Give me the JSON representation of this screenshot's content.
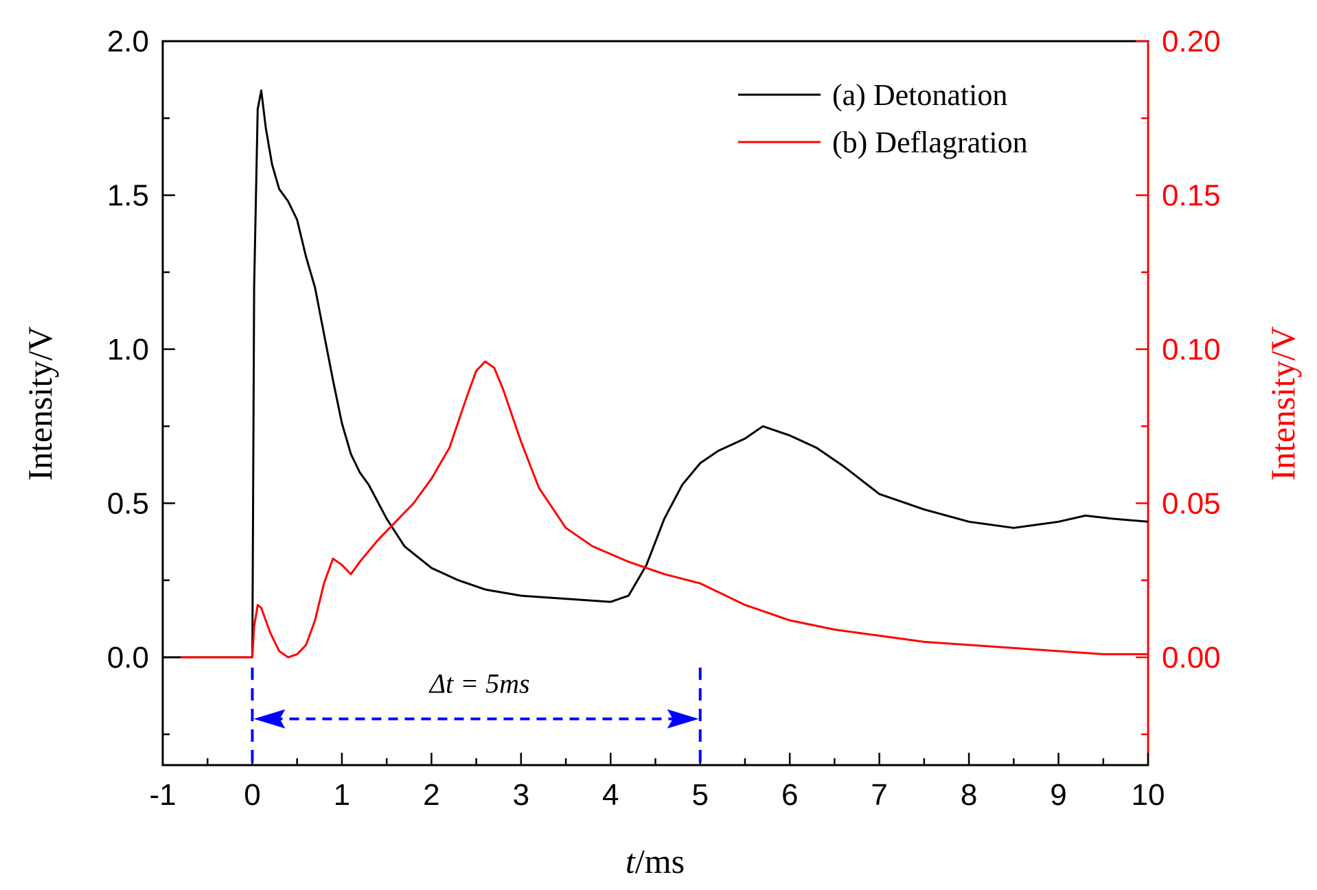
{
  "chart_data": {
    "type": "line",
    "title": "",
    "xlabel_italic": "t",
    "xlabel_rest": "/ms",
    "ylabel_left": "Intensity/V",
    "ylabel_right": "Intensity/V",
    "xlim": [
      -1,
      10
    ],
    "ylim_left": [
      -0.35,
      2.0
    ],
    "ylim_right": [
      -0.035,
      0.2
    ],
    "x_ticks": [
      "-1",
      "0",
      "1",
      "2",
      "3",
      "4",
      "5",
      "6",
      "7",
      "8",
      "9",
      "10"
    ],
    "y_left_ticks": [
      "0.0",
      "0.5",
      "1.0",
      "1.5",
      "2.0"
    ],
    "y_right_ticks": [
      "0.00",
      "0.05",
      "0.10",
      "0.15",
      "0.20"
    ],
    "colors": {
      "detonation": "#000000",
      "deflagration": "#ff0000",
      "annotation": "#0000ff",
      "axis": "#000000"
    },
    "legend_position": "top-right",
    "series": [
      {
        "name": "(a) Detonation",
        "axis": "left",
        "x": [
          -1,
          0,
          0.02,
          0.06,
          0.1,
          0.15,
          0.22,
          0.3,
          0.4,
          0.5,
          0.6,
          0.7,
          0.8,
          0.9,
          1.0,
          1.1,
          1.2,
          1.3,
          1.5,
          1.7,
          2.0,
          2.3,
          2.6,
          3.0,
          3.5,
          4.0,
          4.2,
          4.4,
          4.6,
          4.8,
          5.0,
          5.2,
          5.5,
          5.7,
          6.0,
          6.3,
          6.6,
          7.0,
          7.5,
          8.0,
          8.5,
          9.0,
          9.3,
          9.6,
          10.0
        ],
        "y": [
          0,
          0,
          1.2,
          1.78,
          1.84,
          1.72,
          1.6,
          1.52,
          1.48,
          1.42,
          1.3,
          1.2,
          1.05,
          0.9,
          0.76,
          0.66,
          0.6,
          0.56,
          0.45,
          0.36,
          0.29,
          0.25,
          0.22,
          0.2,
          0.19,
          0.18,
          0.2,
          0.3,
          0.45,
          0.56,
          0.63,
          0.67,
          0.71,
          0.75,
          0.72,
          0.68,
          0.62,
          0.53,
          0.48,
          0.44,
          0.42,
          0.44,
          0.46,
          0.45,
          0.44
        ]
      },
      {
        "name": "(b) Deflagration",
        "axis": "right",
        "x": [
          -0.8,
          0,
          0.02,
          0.06,
          0.1,
          0.2,
          0.3,
          0.4,
          0.5,
          0.6,
          0.7,
          0.8,
          0.9,
          1.0,
          1.1,
          1.2,
          1.4,
          1.6,
          1.8,
          2.0,
          2.2,
          2.4,
          2.5,
          2.6,
          2.7,
          2.8,
          3.0,
          3.2,
          3.5,
          3.8,
          4.2,
          4.6,
          5.0,
          5.5,
          6.0,
          6.5,
          7.0,
          7.5,
          8.0,
          8.5,
          9.0,
          9.5,
          10.0
        ],
        "y": [
          0,
          0,
          0.01,
          0.017,
          0.016,
          0.008,
          0.002,
          0.0,
          0.001,
          0.004,
          0.012,
          0.024,
          0.032,
          0.03,
          0.027,
          0.031,
          0.038,
          0.044,
          0.05,
          0.058,
          0.068,
          0.085,
          0.093,
          0.096,
          0.094,
          0.087,
          0.07,
          0.055,
          0.042,
          0.036,
          0.031,
          0.027,
          0.024,
          0.017,
          0.012,
          0.009,
          0.007,
          0.005,
          0.004,
          0.003,
          0.002,
          0.001,
          0.001
        ]
      }
    ],
    "annotation": {
      "label": "Δt = 5ms",
      "x_start": 0,
      "x_end": 5,
      "y_arrow": -0.2
    }
  }
}
